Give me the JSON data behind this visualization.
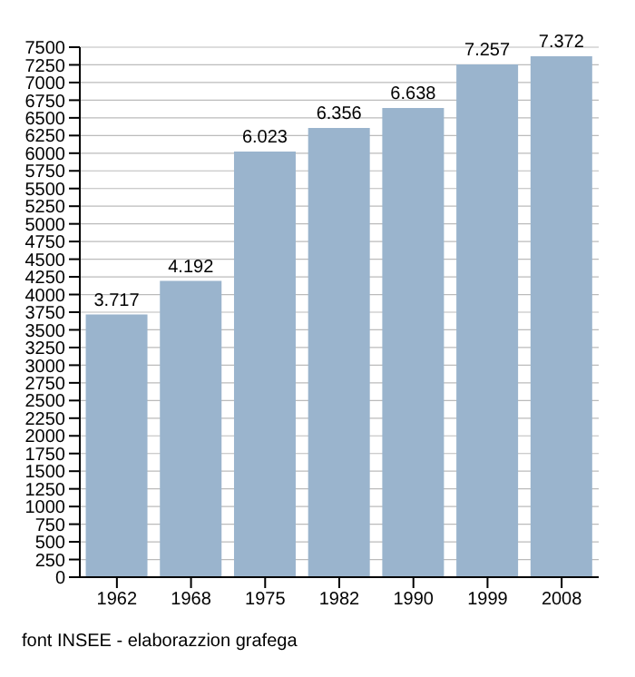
{
  "chart_data": {
    "type": "bar",
    "categories": [
      "1962",
      "1968",
      "1975",
      "1982",
      "1990",
      "1999",
      "2008"
    ],
    "values": [
      3717,
      4192,
      6023,
      6356,
      6638,
      7257,
      7372
    ],
    "value_labels": [
      "3.717",
      "4.192",
      "6.023",
      "6.356",
      "6.638",
      "7.257",
      "7.372"
    ],
    "color": "#9ab4cd",
    "ylim": [
      0,
      7500
    ],
    "yticks": [
      0,
      250,
      500,
      750,
      1000,
      1250,
      1500,
      1750,
      2000,
      2250,
      2500,
      2750,
      3000,
      3250,
      3500,
      3750,
      4000,
      4250,
      4500,
      4750,
      5000,
      5250,
      5500,
      5750,
      6000,
      6250,
      6500,
      6750,
      7000,
      7250,
      7500
    ],
    "grid": "y",
    "annotations": [
      "font INSEE - elaborazzion grafega"
    ]
  }
}
